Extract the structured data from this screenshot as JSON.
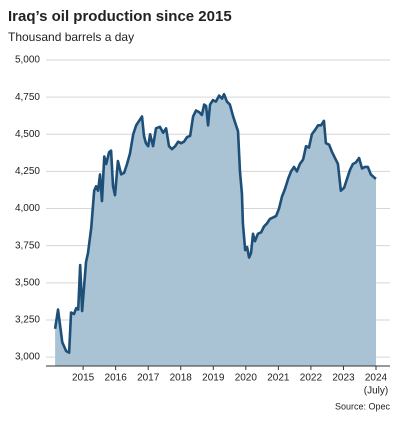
{
  "chart_data": {
    "type": "area",
    "title": "Iraq’s oil production since 2015",
    "subtitle": "Thousand barrels a day",
    "source": "Source: Opec",
    "x_annotation": "(July)",
    "line_color": "#1d4f78",
    "fill_color": "#a9c3d4",
    "grid": true,
    "xlim": [
      2014.36,
      2024.93
    ],
    "ylim": [
      2940,
      5000
    ],
    "xticks": [
      {
        "value": 2015.5,
        "label": "2015"
      },
      {
        "value": 2016.5,
        "label": "2016"
      },
      {
        "value": 2017.5,
        "label": "2017"
      },
      {
        "value": 2018.5,
        "label": "2018"
      },
      {
        "value": 2019.5,
        "label": "2019"
      },
      {
        "value": 2020.5,
        "label": "2020"
      },
      {
        "value": 2021.5,
        "label": "2021"
      },
      {
        "value": 2022.5,
        "label": "2022"
      },
      {
        "value": 2023.5,
        "label": "2023"
      },
      {
        "value": 2024.5,
        "label": "2024"
      }
    ],
    "yticks": [
      {
        "value": 3000,
        "label": "3,000"
      },
      {
        "value": 3250,
        "label": "3,250"
      },
      {
        "value": 3500,
        "label": "3,500"
      },
      {
        "value": 3750,
        "label": "3,750"
      },
      {
        "value": 4000,
        "label": "4,000"
      },
      {
        "value": 4250,
        "label": "4,250"
      },
      {
        "value": 4500,
        "label": "4,500"
      },
      {
        "value": 4750,
        "label": "4,750"
      },
      {
        "value": 5000,
        "label": "5,000"
      }
    ],
    "x": [
      2014.64,
      2014.73,
      2014.86,
      2014.98,
      2015.07,
      2015.13,
      2015.22,
      2015.29,
      2015.35,
      2015.41,
      2015.47,
      2015.59,
      2015.65,
      2015.75,
      2015.84,
      2015.9,
      2015.96,
      2016.02,
      2016.08,
      2016.15,
      2016.21,
      2016.3,
      2016.36,
      2016.42,
      2016.48,
      2016.57,
      2016.67,
      2016.76,
      2016.85,
      2016.94,
      2017.04,
      2017.13,
      2017.25,
      2017.31,
      2017.37,
      2017.43,
      2017.5,
      2017.56,
      2017.65,
      2017.74,
      2017.86,
      2017.96,
      2018.05,
      2018.14,
      2018.23,
      2018.33,
      2018.42,
      2018.51,
      2018.6,
      2018.69,
      2018.79,
      2018.88,
      2018.97,
      2019.06,
      2019.15,
      2019.22,
      2019.28,
      2019.34,
      2019.4,
      2019.49,
      2019.58,
      2019.68,
      2019.77,
      2019.83,
      2019.92,
      2020.01,
      2020.11,
      2020.2,
      2020.26,
      2020.32,
      2020.38,
      2020.41,
      2020.48,
      2020.54,
      2020.6,
      2020.66,
      2020.72,
      2020.78,
      2020.87,
      2020.97,
      2021.06,
      2021.15,
      2021.24,
      2021.34,
      2021.43,
      2021.52,
      2021.61,
      2021.7,
      2021.8,
      2021.89,
      2021.98,
      2022.07,
      2022.16,
      2022.26,
      2022.35,
      2022.44,
      2022.53,
      2022.63,
      2022.72,
      2022.81,
      2022.9,
      2022.96,
      2023.06,
      2023.15,
      2023.24,
      2023.33,
      2023.42,
      2023.52,
      2023.61,
      2023.7,
      2023.79,
      2023.88,
      2023.98,
      2024.07,
      2024.16,
      2024.25,
      2024.34,
      2024.44,
      2024.5
    ],
    "values": [
      3190,
      3320,
      3100,
      3040,
      3030,
      3300,
      3290,
      3330,
      3320,
      3620,
      3310,
      3640,
      3700,
      3870,
      4120,
      4150,
      4120,
      4230,
      4050,
      4350,
      4300,
      4380,
      4390,
      4150,
      4090,
      4320,
      4230,
      4240,
      4300,
      4370,
      4500,
      4560,
      4600,
      4620,
      4490,
      4440,
      4420,
      4500,
      4420,
      4540,
      4550,
      4510,
      4540,
      4420,
      4400,
      4420,
      4450,
      4440,
      4450,
      4480,
      4490,
      4620,
      4660,
      4650,
      4630,
      4700,
      4690,
      4560,
      4700,
      4730,
      4720,
      4760,
      4740,
      4770,
      4720,
      4700,
      4620,
      4560,
      4520,
      4250,
      4100,
      3900,
      3720,
      3740,
      3670,
      3700,
      3830,
      3780,
      3830,
      3840,
      3880,
      3900,
      3930,
      3940,
      3950,
      4000,
      4080,
      4130,
      4200,
      4250,
      4280,
      4250,
      4300,
      4330,
      4420,
      4410,
      4500,
      4530,
      4560,
      4560,
      4590,
      4440,
      4430,
      4380,
      4340,
      4300,
      4120,
      4140,
      4200,
      4260,
      4300,
      4310,
      4340,
      4270,
      4280,
      4280,
      4230,
      4210,
      4200
    ]
  }
}
